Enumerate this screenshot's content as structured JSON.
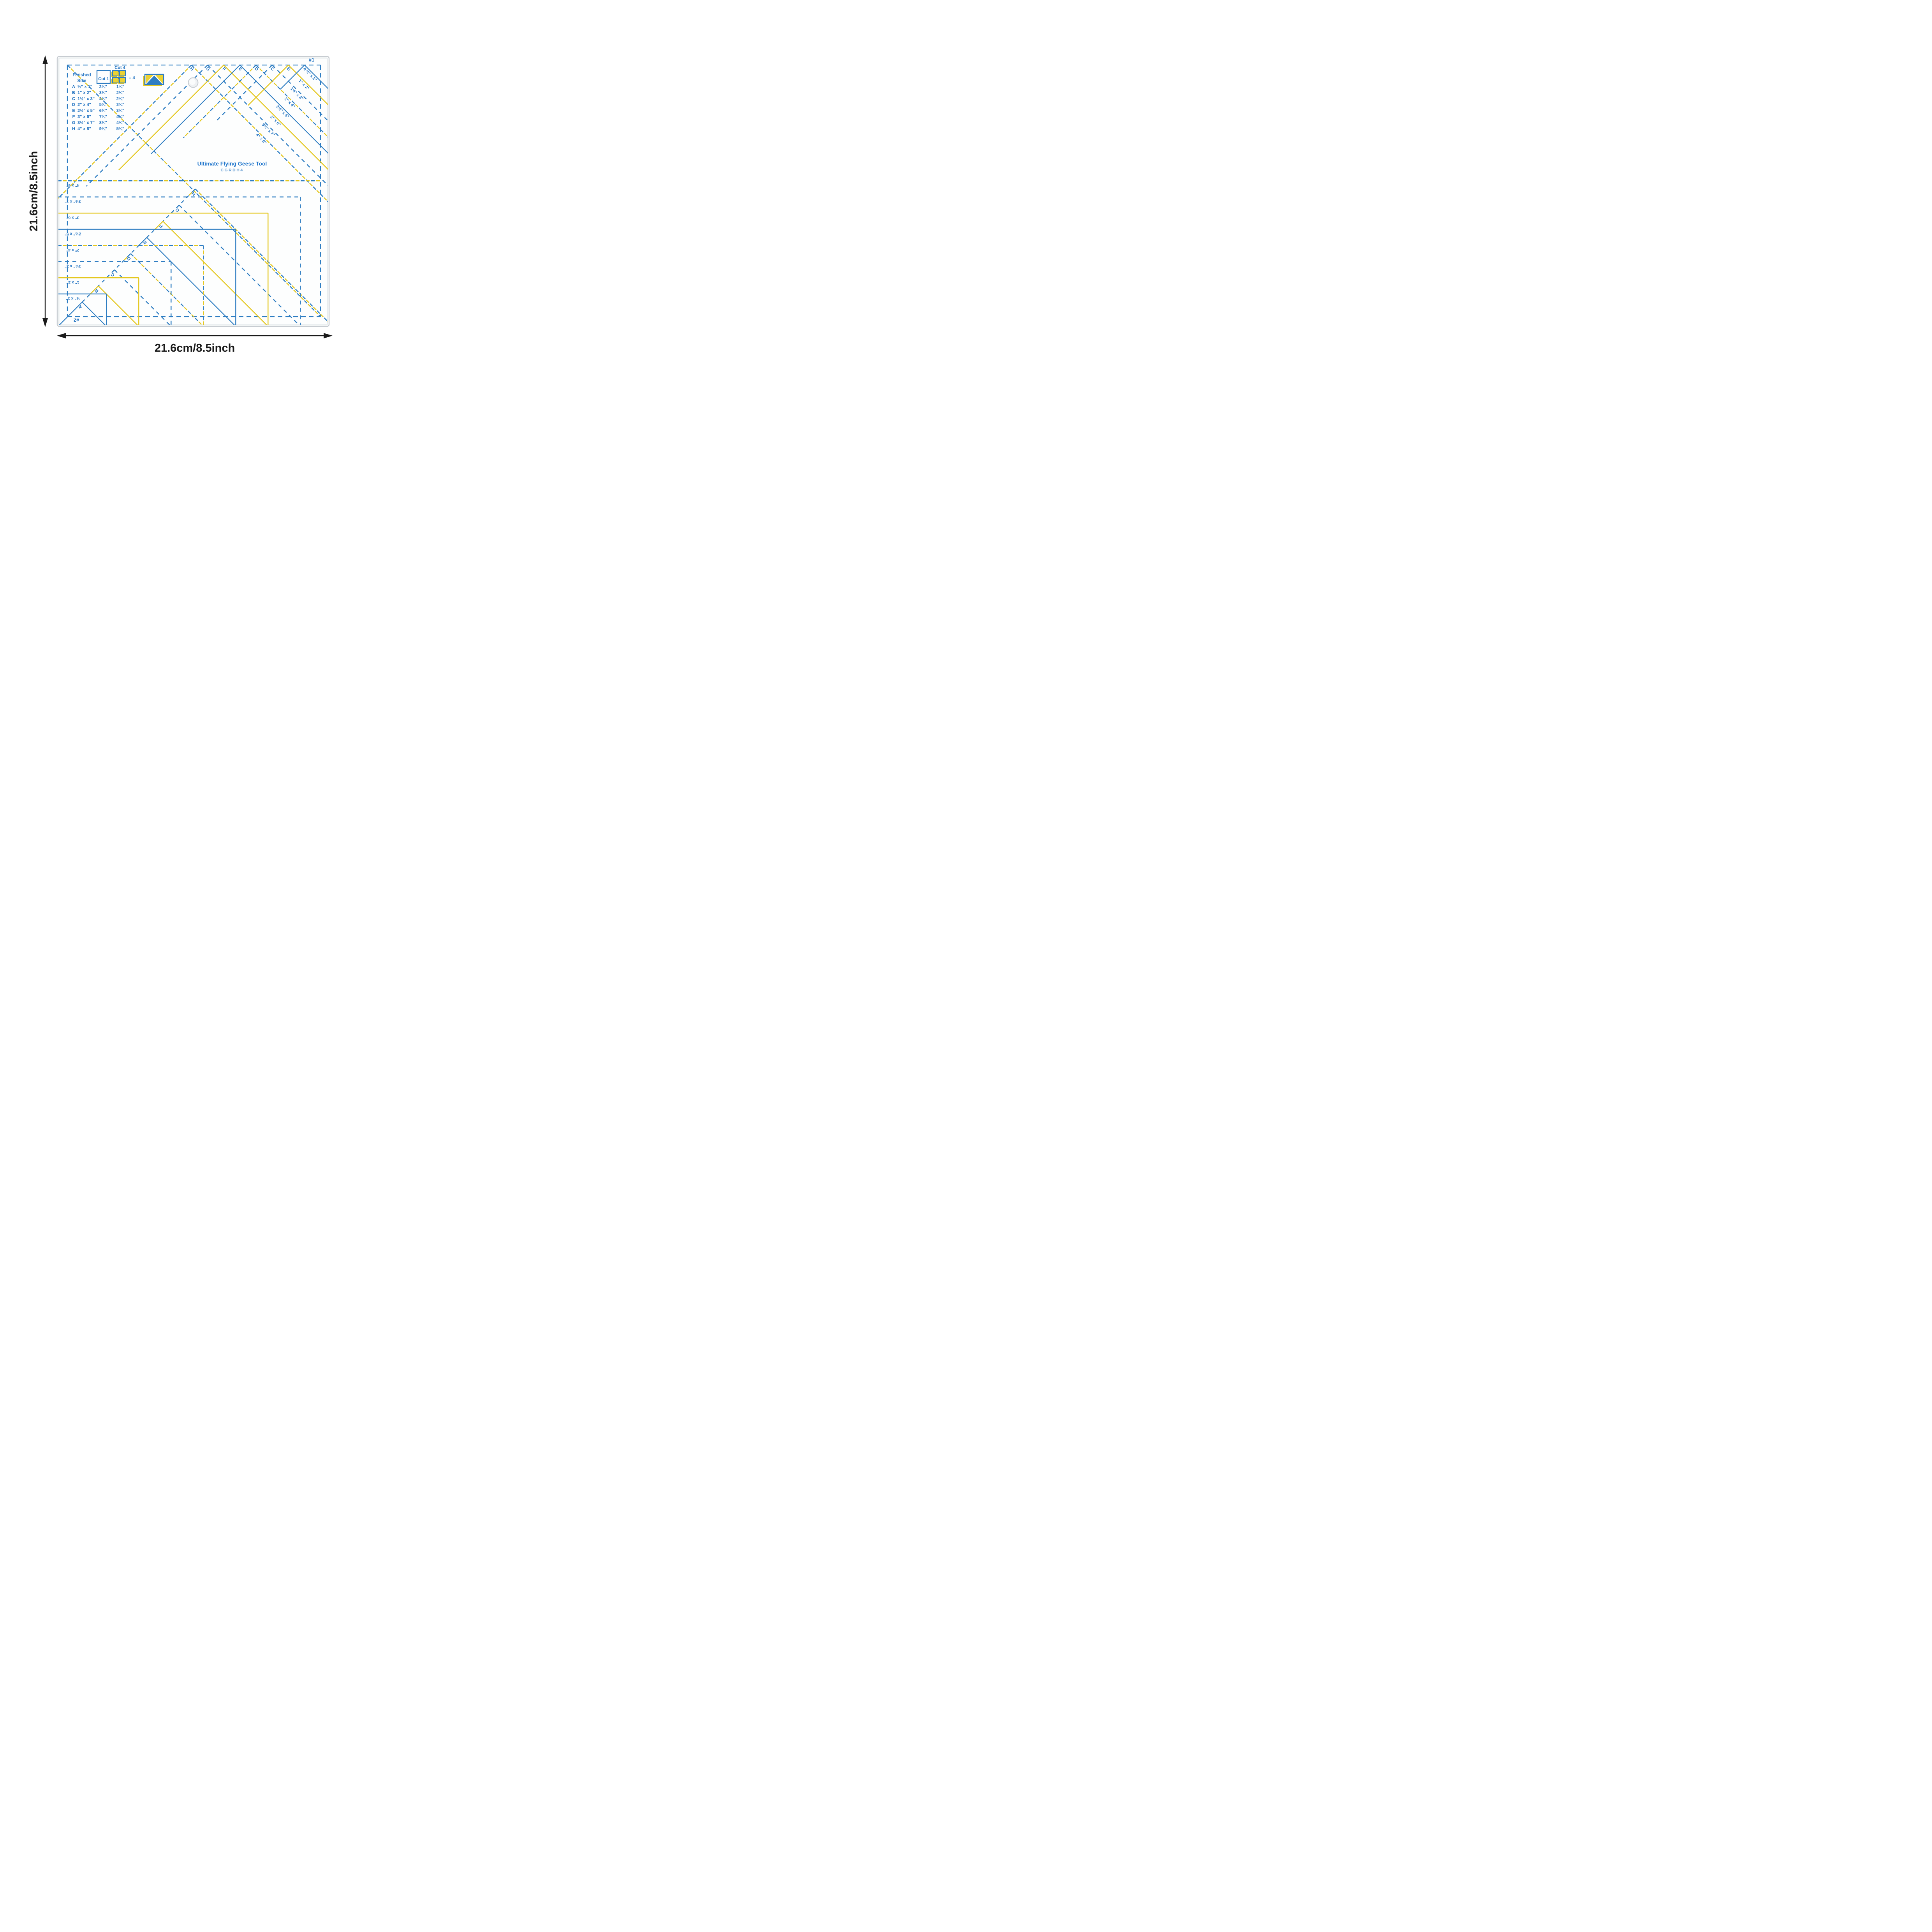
{
  "colors": {
    "blue": "#2e7dc2",
    "text_blue": "#1b6fc0",
    "title_blue": "#2277cc",
    "model_blue": "#4a8cca",
    "yellow": "#e4c71f",
    "black": "#1a1a1a",
    "plate_edge": "#c7ccd1",
    "plate_fill": "#fdfefe"
  },
  "ruler": {
    "set1_label": "#1",
    "set2_label": "#2",
    "title": "Ultimate Flying Geese Tool",
    "model": "CGRDH4",
    "letters": [
      "A",
      "B",
      "C",
      "D",
      "E",
      "F",
      "G",
      "H"
    ],
    "size_labels": [
      "½\" x 1\"",
      "1\" x 2\"",
      "1½\" x 3\"",
      "2\" x 4\"",
      "2½\" x 5\"",
      "3\" x 6\"",
      "3½\" x 7\"",
      "4\" x 8\""
    ],
    "line_styles": [
      "solid-blue",
      "solid-yellow",
      "dashed-blue",
      "dashed-mixed",
      "solid-blue",
      "solid-yellow",
      "dashed-blue",
      "dashed-mixed"
    ],
    "table": {
      "finished_header": [
        "Finished",
        "Size"
      ],
      "cut1_label": "Cut 1",
      "cut4_label": "Cut 4",
      "equals_label": "= 4",
      "rows": [
        {
          "letter": "A",
          "finished": "½\" x 1\"",
          "cut1": "2¾\"",
          "cut4": "1¾\""
        },
        {
          "letter": "B",
          "finished": "1\" x 2\"",
          "cut1": "3¾\"",
          "cut4": "2¼\""
        },
        {
          "letter": "C",
          "finished": "1½\" x 3\"",
          "cut1": "4¾\"",
          "cut4": "2¾\""
        },
        {
          "letter": "D",
          "finished": "2\" x 4\"",
          "cut1": "5¾\"",
          "cut4": "3¼\""
        },
        {
          "letter": "E",
          "finished": "2½\" x 5\"",
          "cut1": "6¾\"",
          "cut4": "3¾\""
        },
        {
          "letter": "F",
          "finished": "3\" x 6\"",
          "cut1": "7¾\"",
          "cut4": "4¼\""
        },
        {
          "letter": "G",
          "finished": "3½\" x 7\"",
          "cut1": "8¾\"",
          "cut4": "4¾\""
        },
        {
          "letter": "H",
          "finished": "4\" x 8\"",
          "cut1": "9¾\"",
          "cut4": "5¼\""
        }
      ]
    }
  },
  "dimensions": {
    "left_label": "21.6cm/8.5inch",
    "bottom_label": "21.6cm/8.5inch"
  }
}
